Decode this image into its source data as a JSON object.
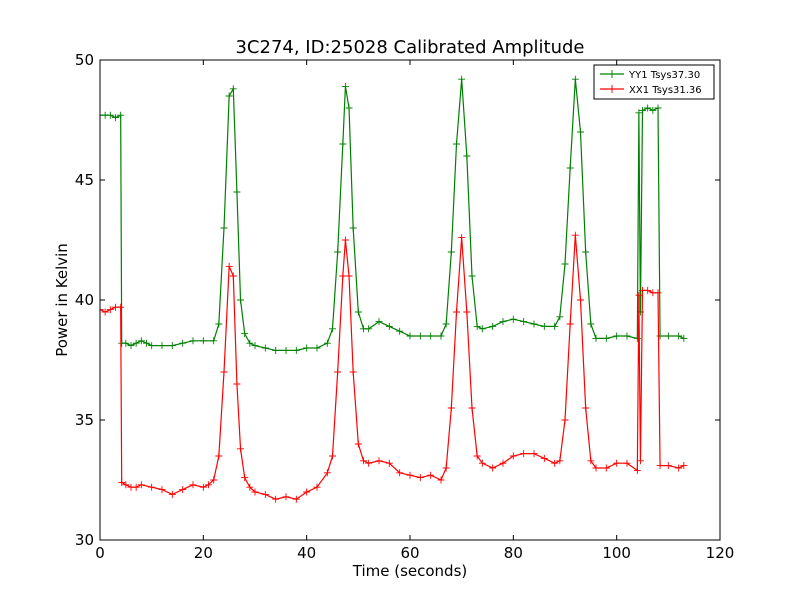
{
  "chart_data": {
    "type": "line",
    "title": "3C274, ID:25028 Calibrated Amplitude",
    "xlabel": "Time (seconds)",
    "ylabel": "Power in Kelvin",
    "xlim": [
      0,
      120
    ],
    "ylim": [
      30,
      50
    ],
    "xticks": [
      "0",
      "20",
      "40",
      "60",
      "80",
      "100",
      "120"
    ],
    "yticks": [
      "30",
      "35",
      "40",
      "45",
      "50"
    ],
    "grid": false,
    "legend_position": "top-right",
    "marker": "+",
    "series": [
      {
        "name": "YY1 Tsys37.30",
        "color": "#008000",
        "points": [
          [
            0,
            47.7
          ],
          [
            1,
            47.7
          ],
          [
            2,
            47.7
          ],
          [
            3,
            47.6
          ],
          [
            4,
            47.7
          ],
          [
            4.2,
            38.2
          ],
          [
            5,
            38.2
          ],
          [
            6,
            38.1
          ],
          [
            7,
            38.2
          ],
          [
            8,
            38.3
          ],
          [
            9,
            38.2
          ],
          [
            10,
            38.1
          ],
          [
            12,
            38.1
          ],
          [
            14,
            38.1
          ],
          [
            16,
            38.2
          ],
          [
            18,
            38.3
          ],
          [
            20,
            38.3
          ],
          [
            22,
            38.3
          ],
          [
            23,
            39.0
          ],
          [
            24,
            43.0
          ],
          [
            25,
            48.5
          ],
          [
            25.8,
            48.8
          ],
          [
            26.5,
            44.5
          ],
          [
            27.2,
            40.0
          ],
          [
            28,
            38.6
          ],
          [
            29,
            38.2
          ],
          [
            30,
            38.1
          ],
          [
            32,
            38.0
          ],
          [
            34,
            37.9
          ],
          [
            36,
            37.9
          ],
          [
            38,
            37.9
          ],
          [
            40,
            38.0
          ],
          [
            42,
            38.0
          ],
          [
            44,
            38.2
          ],
          [
            45,
            38.8
          ],
          [
            46,
            42.0
          ],
          [
            47,
            46.5
          ],
          [
            47.5,
            48.9
          ],
          [
            48.2,
            48.0
          ],
          [
            49,
            43.0
          ],
          [
            50,
            39.5
          ],
          [
            51,
            38.8
          ],
          [
            52,
            38.8
          ],
          [
            54,
            39.1
          ],
          [
            56,
            38.9
          ],
          [
            58,
            38.7
          ],
          [
            60,
            38.5
          ],
          [
            62,
            38.5
          ],
          [
            64,
            38.5
          ],
          [
            66,
            38.5
          ],
          [
            67,
            39.0
          ],
          [
            68,
            42.0
          ],
          [
            69,
            46.5
          ],
          [
            70,
            49.2
          ],
          [
            71,
            46.0
          ],
          [
            72,
            41.0
          ],
          [
            73,
            38.9
          ],
          [
            74,
            38.8
          ],
          [
            76,
            38.9
          ],
          [
            78,
            39.1
          ],
          [
            80,
            39.2
          ],
          [
            82,
            39.1
          ],
          [
            84,
            39.0
          ],
          [
            86,
            38.9
          ],
          [
            88,
            38.9
          ],
          [
            89,
            39.3
          ],
          [
            90,
            41.5
          ],
          [
            91,
            45.5
          ],
          [
            92,
            49.2
          ],
          [
            93,
            47.0
          ],
          [
            94,
            42.0
          ],
          [
            95,
            39.0
          ],
          [
            96,
            38.4
          ],
          [
            98,
            38.4
          ],
          [
            100,
            38.5
          ],
          [
            102,
            38.5
          ],
          [
            104,
            38.4
          ],
          [
            104.3,
            47.8
          ],
          [
            104.6,
            39.5
          ],
          [
            105,
            47.9
          ],
          [
            106,
            48.0
          ],
          [
            107,
            47.9
          ],
          [
            108,
            48.0
          ],
          [
            108.4,
            38.5
          ],
          [
            110,
            38.5
          ],
          [
            112,
            38.5
          ],
          [
            113,
            38.4
          ]
        ]
      },
      {
        "name": "XX1 Tsys31.36",
        "color": "#ff0000",
        "points": [
          [
            0,
            39.6
          ],
          [
            1,
            39.5
          ],
          [
            2,
            39.6
          ],
          [
            3,
            39.7
          ],
          [
            4,
            39.7
          ],
          [
            4.2,
            32.4
          ],
          [
            5,
            32.3
          ],
          [
            6,
            32.2
          ],
          [
            7,
            32.2
          ],
          [
            8,
            32.3
          ],
          [
            10,
            32.2
          ],
          [
            12,
            32.1
          ],
          [
            14,
            31.9
          ],
          [
            16,
            32.1
          ],
          [
            18,
            32.3
          ],
          [
            20,
            32.2
          ],
          [
            21,
            32.3
          ],
          [
            22,
            32.5
          ],
          [
            23,
            33.5
          ],
          [
            24,
            37.0
          ],
          [
            25,
            41.4
          ],
          [
            25.8,
            41.0
          ],
          [
            26.5,
            36.5
          ],
          [
            27.2,
            33.8
          ],
          [
            28,
            32.6
          ],
          [
            29,
            32.2
          ],
          [
            30,
            32.0
          ],
          [
            32,
            31.9
          ],
          [
            34,
            31.7
          ],
          [
            36,
            31.8
          ],
          [
            38,
            31.7
          ],
          [
            40,
            32.0
          ],
          [
            42,
            32.2
          ],
          [
            44,
            32.8
          ],
          [
            45,
            33.5
          ],
          [
            46,
            37.0
          ],
          [
            47,
            41.0
          ],
          [
            47.5,
            42.5
          ],
          [
            48.2,
            41.0
          ],
          [
            49,
            37.0
          ],
          [
            50,
            34.0
          ],
          [
            51,
            33.3
          ],
          [
            52,
            33.2
          ],
          [
            54,
            33.3
          ],
          [
            56,
            33.2
          ],
          [
            58,
            32.8
          ],
          [
            60,
            32.7
          ],
          [
            62,
            32.6
          ],
          [
            64,
            32.7
          ],
          [
            66,
            32.5
          ],
          [
            67,
            33.0
          ],
          [
            68,
            35.5
          ],
          [
            69,
            39.5
          ],
          [
            70,
            42.6
          ],
          [
            71,
            39.5
          ],
          [
            72,
            35.5
          ],
          [
            73,
            33.5
          ],
          [
            74,
            33.2
          ],
          [
            76,
            33.0
          ],
          [
            78,
            33.2
          ],
          [
            80,
            33.5
          ],
          [
            82,
            33.6
          ],
          [
            84,
            33.6
          ],
          [
            86,
            33.4
          ],
          [
            88,
            33.2
          ],
          [
            89,
            33.3
          ],
          [
            90,
            35.0
          ],
          [
            91,
            39.0
          ],
          [
            92,
            42.7
          ],
          [
            93,
            40.0
          ],
          [
            94,
            35.5
          ],
          [
            95,
            33.3
          ],
          [
            96,
            33.0
          ],
          [
            98,
            33.0
          ],
          [
            100,
            33.2
          ],
          [
            102,
            33.2
          ],
          [
            104,
            32.9
          ],
          [
            104.3,
            40.2
          ],
          [
            104.6,
            33.3
          ],
          [
            105,
            40.4
          ],
          [
            106,
            40.4
          ],
          [
            107,
            40.3
          ],
          [
            108,
            40.3
          ],
          [
            108.4,
            33.1
          ],
          [
            110,
            33.1
          ],
          [
            112,
            33.0
          ],
          [
            113,
            33.1
          ]
        ]
      }
    ]
  }
}
